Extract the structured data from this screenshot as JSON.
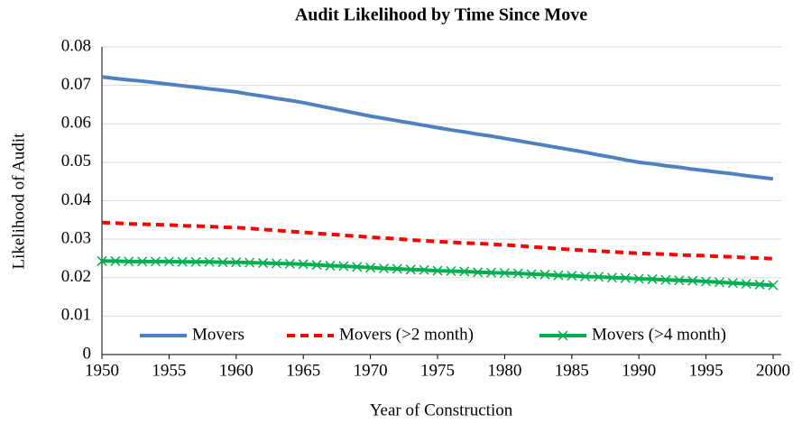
{
  "chart_data": {
    "type": "line",
    "title": "Audit Likelihood by Time Since Move",
    "x_label": "Year of Construction",
    "y_label": "Likelihood of Audit",
    "x": [
      1950,
      1951,
      1952,
      1953,
      1954,
      1955,
      1956,
      1957,
      1958,
      1959,
      1960,
      1961,
      1962,
      1963,
      1964,
      1965,
      1966,
      1967,
      1968,
      1969,
      1970,
      1971,
      1972,
      1973,
      1974,
      1975,
      1976,
      1977,
      1978,
      1979,
      1980,
      1981,
      1982,
      1983,
      1984,
      1985,
      1986,
      1987,
      1988,
      1989,
      1990,
      1991,
      1992,
      1993,
      1994,
      1995,
      1996,
      1997,
      1998,
      1999,
      2000
    ],
    "xlim": [
      1950,
      2000
    ],
    "xticks": [
      1950,
      1955,
      1960,
      1965,
      1970,
      1975,
      1980,
      1985,
      1990,
      1995,
      2000
    ],
    "ylim": [
      0,
      0.08
    ],
    "yticks": [
      0,
      0.01,
      0.02,
      0.03,
      0.04,
      0.05,
      0.06,
      0.07,
      0.08
    ],
    "grid": true,
    "legend": "bottom",
    "series": [
      {
        "name": "Movers",
        "color": "#4f81bd",
        "style": "solid",
        "marker": "none",
        "values": [
          0.0722,
          0.0718,
          0.0714,
          0.0711,
          0.0707,
          0.0703,
          0.0699,
          0.0695,
          0.0691,
          0.0687,
          0.0683,
          0.0677,
          0.0672,
          0.0666,
          0.0661,
          0.0655,
          0.0648,
          0.0641,
          0.0634,
          0.0627,
          0.062,
          0.0614,
          0.0608,
          0.0602,
          0.0596,
          0.059,
          0.0584,
          0.0579,
          0.0573,
          0.0568,
          0.0562,
          0.0556,
          0.055,
          0.0544,
          0.0538,
          0.0532,
          0.0526,
          0.0519,
          0.0513,
          0.0506,
          0.05,
          0.0496,
          0.0491,
          0.0487,
          0.0482,
          0.0478,
          0.0474,
          0.047,
          0.0465,
          0.0461,
          0.0457
        ]
      },
      {
        "name": "Movers (>2 month)",
        "color": "#ff0000",
        "style": "dashed",
        "marker": "none",
        "values": [
          0.0343,
          0.0342,
          0.034,
          0.0339,
          0.0338,
          0.0337,
          0.0335,
          0.0334,
          0.0333,
          0.0331,
          0.033,
          0.0328,
          0.0325,
          0.0323,
          0.032,
          0.0318,
          0.0315,
          0.0313,
          0.031,
          0.0308,
          0.0305,
          0.0303,
          0.0301,
          0.0298,
          0.0296,
          0.0294,
          0.0292,
          0.029,
          0.0289,
          0.0287,
          0.0285,
          0.0283,
          0.028,
          0.0278,
          0.0275,
          0.0273,
          0.0271,
          0.0269,
          0.0267,
          0.0265,
          0.0263,
          0.0262,
          0.0261,
          0.0259,
          0.0258,
          0.0257,
          0.0255,
          0.0254,
          0.0252,
          0.0251,
          0.0249
        ]
      },
      {
        "name": "Movers (>4 month)",
        "color": "#00b050",
        "style": "solid",
        "marker": "x",
        "values": [
          0.0243,
          0.0243,
          0.0242,
          0.0242,
          0.0242,
          0.0242,
          0.0241,
          0.0241,
          0.0241,
          0.024,
          0.024,
          0.0239,
          0.0238,
          0.0237,
          0.0236,
          0.0235,
          0.0233,
          0.0231,
          0.023,
          0.0228,
          0.0226,
          0.0224,
          0.0223,
          0.0221,
          0.022,
          0.0218,
          0.0217,
          0.0216,
          0.0214,
          0.0213,
          0.0212,
          0.0211,
          0.0209,
          0.0208,
          0.0206,
          0.0205,
          0.0203,
          0.0202,
          0.02,
          0.0199,
          0.0197,
          0.0196,
          0.0194,
          0.0193,
          0.0192,
          0.019,
          0.0188,
          0.0186,
          0.0184,
          0.0182,
          0.018
        ]
      }
    ]
  }
}
